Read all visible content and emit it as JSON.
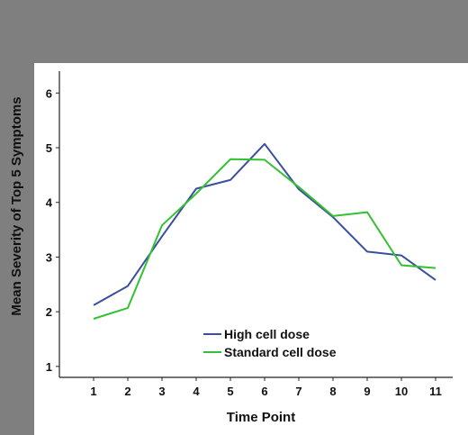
{
  "chart_data": {
    "type": "line",
    "title": "",
    "xlabel": "Time Point",
    "ylabel": "Mean Severity of Top 5 Symptoms",
    "x": [
      1,
      2,
      3,
      4,
      5,
      6,
      7,
      8,
      9,
      10,
      11
    ],
    "xlim": [
      0,
      11.5
    ],
    "ylim": [
      0.8,
      6.4
    ],
    "yticks": [
      1,
      2,
      3,
      4,
      5,
      6
    ],
    "grid": false,
    "legend_position": "bottom-center",
    "series": [
      {
        "name": "High cell dose",
        "color": "#3a4f9e",
        "values": [
          2.12,
          2.47,
          3.38,
          4.25,
          4.41,
          5.07,
          4.24,
          3.73,
          3.1,
          3.03,
          2.58
        ]
      },
      {
        "name": "Standard cell dose",
        "color": "#33c133",
        "values": [
          1.87,
          2.07,
          3.58,
          4.16,
          4.79,
          4.78,
          4.28,
          3.75,
          3.82,
          2.85,
          2.8
        ]
      }
    ]
  },
  "colors": {
    "page_background": "#7f7f7f",
    "plot_background": "#ffffff"
  }
}
